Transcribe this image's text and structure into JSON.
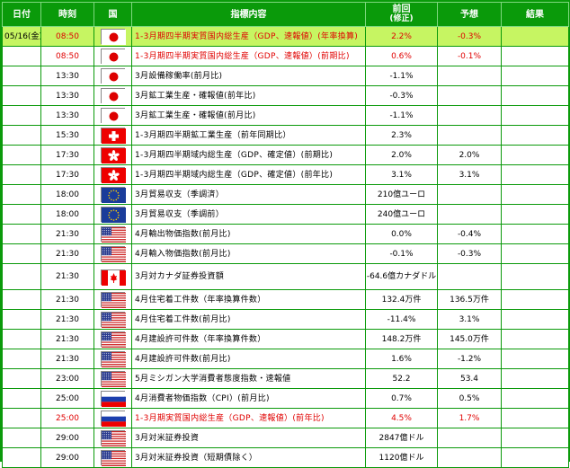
{
  "headers": {
    "date": "日付",
    "time": "時刻",
    "country": "国",
    "indicator": "指標内容",
    "result_top": "前回",
    "result_bottom": "(修正)",
    "forecast": "予想",
    "outcome": "結果"
  },
  "rows": [
    {
      "date": "05/16(金)",
      "time": "08:50",
      "country": "japan",
      "indicator": "1-3月期四半期実質国内総生産（GDP、速報値）(年率換算)",
      "result": "2.2%",
      "forecast": "-0.3%",
      "outcome": "",
      "style": "hl"
    },
    {
      "date": "",
      "time": "08:50",
      "country": "japan",
      "indicator": "1-3月期四半期実質国内総生産（GDP、速報値）(前期比)",
      "result": "0.6%",
      "forecast": "-0.1%",
      "outcome": "",
      "style": "red"
    },
    {
      "date": "",
      "time": "13:30",
      "country": "japan",
      "indicator": "3月設備稼働率(前月比)",
      "result": "-1.1%",
      "forecast": "",
      "outcome": "",
      "style": ""
    },
    {
      "date": "",
      "time": "13:30",
      "country": "japan",
      "indicator": "3月鉱工業生産・確報値(前年比)",
      "result": "-0.3%",
      "forecast": "",
      "outcome": "",
      "style": ""
    },
    {
      "date": "",
      "time": "13:30",
      "country": "japan",
      "indicator": "3月鉱工業生産・確報値(前月比)",
      "result": "-1.1%",
      "forecast": "",
      "outcome": "",
      "style": ""
    },
    {
      "date": "",
      "time": "15:30",
      "country": "switzerland",
      "indicator": "1-3月期四半期鉱工業生産（前年同期比）",
      "result": "2.3%",
      "forecast": "",
      "outcome": "",
      "style": ""
    },
    {
      "date": "",
      "time": "17:30",
      "country": "hongkong",
      "indicator": "1-3月期四半期域内総生産（GDP、確定値）(前期比)",
      "result": "2.0%",
      "forecast": "2.0%",
      "outcome": "",
      "style": ""
    },
    {
      "date": "",
      "time": "17:30",
      "country": "hongkong",
      "indicator": "1-3月期四半期域内総生産（GDP、確定値）(前年比)",
      "result": "3.1%",
      "forecast": "3.1%",
      "outcome": "",
      "style": ""
    },
    {
      "date": "",
      "time": "18:00",
      "country": "eu",
      "indicator": "3月貿易収支（季調済）",
      "result": "210億ユーロ",
      "forecast": "",
      "outcome": "",
      "style": ""
    },
    {
      "date": "",
      "time": "18:00",
      "country": "eu",
      "indicator": "3月貿易収支（季調前）",
      "result": "240億ユーロ",
      "forecast": "",
      "outcome": "",
      "style": ""
    },
    {
      "date": "",
      "time": "21:30",
      "country": "usa",
      "indicator": "4月輸出物価指数(前月比)",
      "result": "0.0%",
      "forecast": "-0.4%",
      "outcome": "",
      "style": ""
    },
    {
      "date": "",
      "time": "21:30",
      "country": "usa",
      "indicator": "4月輸入物価指数(前月比)",
      "result": "-0.1%",
      "forecast": "-0.3%",
      "outcome": "",
      "style": ""
    },
    {
      "date": "",
      "time": "21:30",
      "country": "canada",
      "indicator": "3月対カナダ証券投資額",
      "result": "-64.6億カナダドル",
      "forecast": "",
      "outcome": "",
      "style": "tall"
    },
    {
      "date": "",
      "time": "21:30",
      "country": "usa",
      "indicator": "4月住宅着工件数（年率換算件数）",
      "result": "132.4万件",
      "forecast": "136.5万件",
      "outcome": "",
      "style": ""
    },
    {
      "date": "",
      "time": "21:30",
      "country": "usa",
      "indicator": "4月住宅着工件数(前月比)",
      "result": "-11.4%",
      "forecast": "3.1%",
      "outcome": "",
      "style": ""
    },
    {
      "date": "",
      "time": "21:30",
      "country": "usa",
      "indicator": "4月建設許可件数（年率換算件数）",
      "result": "148.2万件",
      "forecast": "145.0万件",
      "outcome": "",
      "style": ""
    },
    {
      "date": "",
      "time": "21:30",
      "country": "usa",
      "indicator": "4月建設許可件数(前月比)",
      "result": "1.6%",
      "forecast": "-1.2%",
      "outcome": "",
      "style": ""
    },
    {
      "date": "",
      "time": "23:00",
      "country": "usa",
      "indicator": "5月ミシガン大学消費者態度指数・速報値",
      "result": "52.2",
      "forecast": "53.4",
      "outcome": "",
      "style": ""
    },
    {
      "date": "",
      "time": "25:00",
      "country": "russia",
      "indicator": "4月消費者物価指数（CPI）(前月比)",
      "result": "0.7%",
      "forecast": "0.5%",
      "outcome": "",
      "style": ""
    },
    {
      "date": "",
      "time": "25:00",
      "country": "russia",
      "indicator": "1-3月期実質国内総生産（GDP、速報値）(前年比)",
      "result": "4.5%",
      "forecast": "1.7%",
      "outcome": "",
      "style": "red"
    },
    {
      "date": "",
      "time": "29:00",
      "country": "usa",
      "indicator": "3月対米証券投資",
      "result": "2847億ドル",
      "forecast": "",
      "outcome": "",
      "style": ""
    },
    {
      "date": "",
      "time": "29:00",
      "country": "usa",
      "indicator": "3月対米証券投資（短期債除く）",
      "result": "1120億ドル",
      "forecast": "",
      "outcome": "",
      "style": ""
    }
  ]
}
